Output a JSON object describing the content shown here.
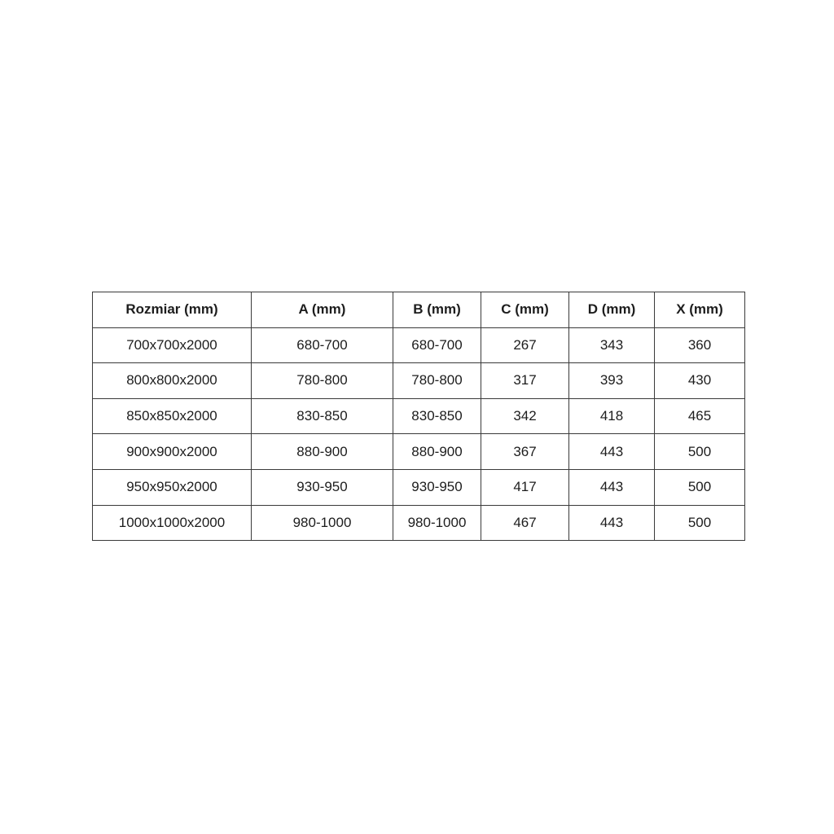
{
  "colors": {
    "background": "#ffffff",
    "border": "#3a3a3a",
    "text": "#1d1d1d"
  },
  "chart_data": {
    "type": "table",
    "title": "",
    "columns": [
      "Rozmiar (mm)",
      "A (mm)",
      "B (mm)",
      "C (mm)",
      "D (mm)",
      "X (mm)"
    ],
    "rows": [
      [
        "700x700x2000",
        "680-700",
        "680-700",
        "267",
        "343",
        "360"
      ],
      [
        "800x800x2000",
        "780-800",
        "780-800",
        "317",
        "393",
        "430"
      ],
      [
        "850x850x2000",
        "830-850",
        "830-850",
        "342",
        "418",
        "465"
      ],
      [
        "900x900x2000",
        "880-900",
        "880-900",
        "367",
        "443",
        "500"
      ],
      [
        "950x950x2000",
        "930-950",
        "930-950",
        "417",
        "443",
        "500"
      ],
      [
        "1000x1000x2000",
        "980-1000",
        "980-1000",
        "467",
        "443",
        "500"
      ]
    ]
  }
}
